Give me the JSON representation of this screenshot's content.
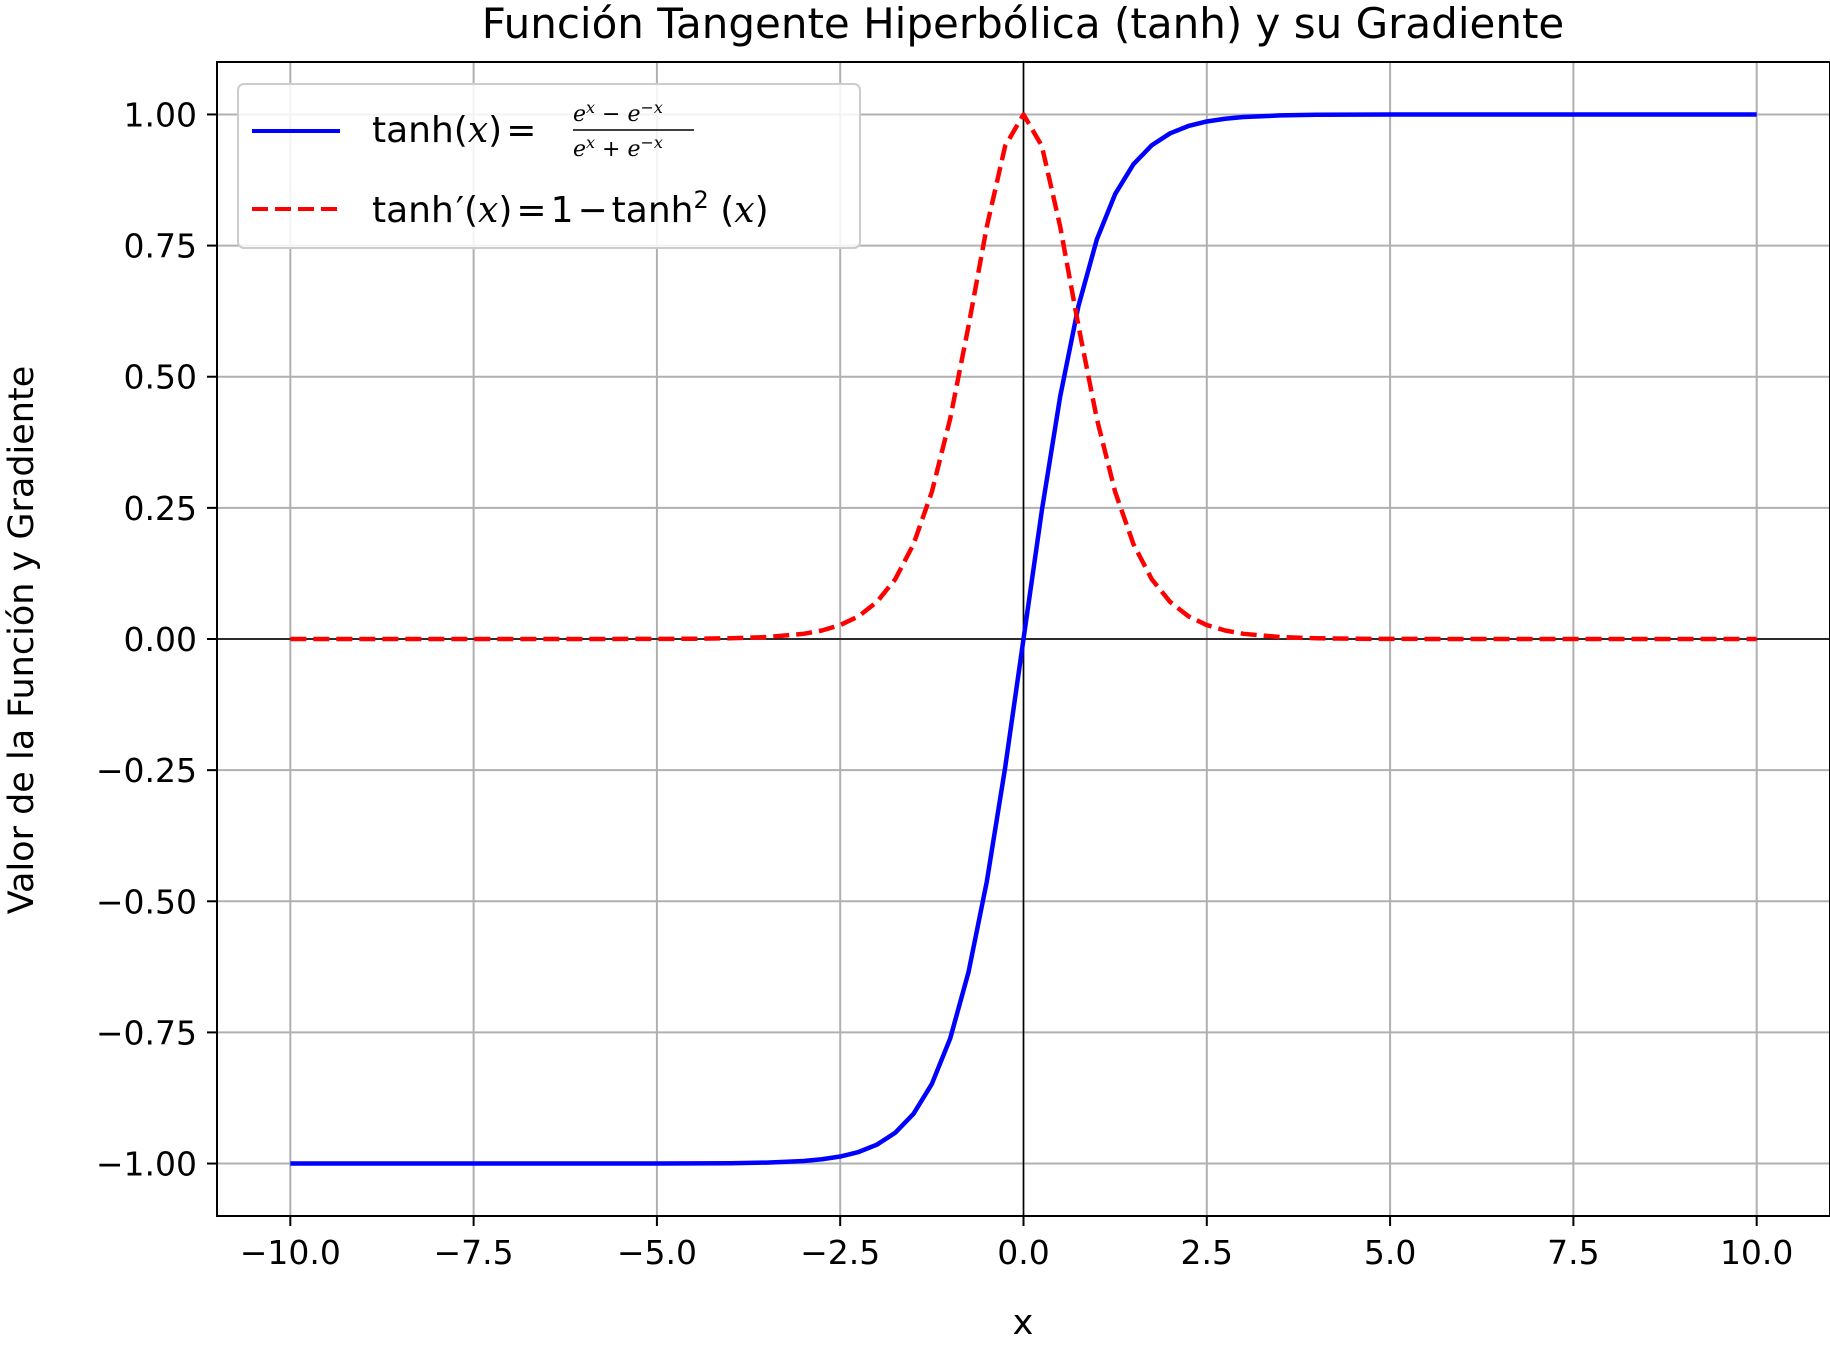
{
  "chart_data": {
    "type": "line",
    "title": "Función Tangente Hiperbólica (tanh) y su Gradiente",
    "xlabel": "x",
    "ylabel": "Valor de la Función y Gradiente",
    "xlim": [
      -11,
      11
    ],
    "ylim": [
      -1.1,
      1.1
    ],
    "x_ticks": [
      -10,
      -7.5,
      -5,
      -2.5,
      0,
      2.5,
      5,
      7.5,
      10
    ],
    "x_tick_labels": [
      "−10.0",
      "−7.5",
      "−5.0",
      "−2.5",
      "0.0",
      "2.5",
      "5.0",
      "7.5",
      "10.0"
    ],
    "y_ticks": [
      -1,
      -0.75,
      -0.5,
      -0.25,
      0,
      0.25,
      0.5,
      0.75,
      1
    ],
    "y_tick_labels": [
      "−1.00",
      "−0.75",
      "−0.50",
      "−0.25",
      "0.00",
      "0.25",
      "0.50",
      "0.75",
      "1.00"
    ],
    "grid": true,
    "zero_lines": true,
    "legend_position": "top-left",
    "x": [
      -10,
      -9,
      -8,
      -7,
      -6,
      -5,
      -4.5,
      -4,
      -3.5,
      -3,
      -2.75,
      -2.5,
      -2.25,
      -2,
      -1.75,
      -1.5,
      -1.25,
      -1,
      -0.75,
      -0.5,
      -0.25,
      0,
      0.25,
      0.5,
      0.75,
      1,
      1.25,
      1.5,
      1.75,
      2,
      2.25,
      2.5,
      2.75,
      3,
      3.5,
      4,
      4.5,
      5,
      6,
      7,
      8,
      9,
      10
    ],
    "series": [
      {
        "name": "tanh(x)",
        "style": "solid",
        "color": "#0000ff",
        "values": [
          -1.0,
          -1.0,
          -1.0,
          -0.99999834,
          -0.99998771,
          -0.9999092,
          -0.99975321,
          -0.9993293,
          -0.9981779,
          -0.99505475,
          -0.99185004,
          -0.9866143,
          -0.97802611,
          -0.96402758,
          -0.94137554,
          -0.90514825,
          -0.84828364,
          -0.76159416,
          -0.63514895,
          -0.46211716,
          -0.24491866,
          0.0,
          0.24491866,
          0.46211716,
          0.63514895,
          0.76159416,
          0.84828364,
          0.90514825,
          0.94137554,
          0.96402758,
          0.97802611,
          0.9866143,
          0.99185004,
          0.99505475,
          0.9981779,
          0.9993293,
          0.99975321,
          0.9999092,
          0.99998771,
          0.99999834,
          1.0,
          1.0,
          1.0
        ]
      },
      {
        "name": "tanh′(x) = 1 − tanh²(x)",
        "style": "dashed",
        "color": "#ff0000",
        "values": [
          0.0,
          0.0,
          0.0,
          3.3e-06,
          2.46e-05,
          0.0001816,
          0.0004935,
          0.001341,
          0.00364,
          0.009866,
          0.016236,
          0.0265922,
          0.0432818,
          0.0706508,
          0.1138307,
          0.1807066,
          0.2804366,
          0.4199743,
          0.5965858,
          0.7864477,
          0.9400148,
          1.0,
          0.9400148,
          0.7864477,
          0.5965858,
          0.4199743,
          0.2804366,
          0.1807066,
          0.1138307,
          0.0706508,
          0.0432818,
          0.0265922,
          0.016236,
          0.009866,
          0.00364,
          0.001341,
          0.0004935,
          0.0001816,
          2.46e-05,
          3.3e-06,
          0.0,
          0.0,
          0.0
        ]
      }
    ]
  }
}
